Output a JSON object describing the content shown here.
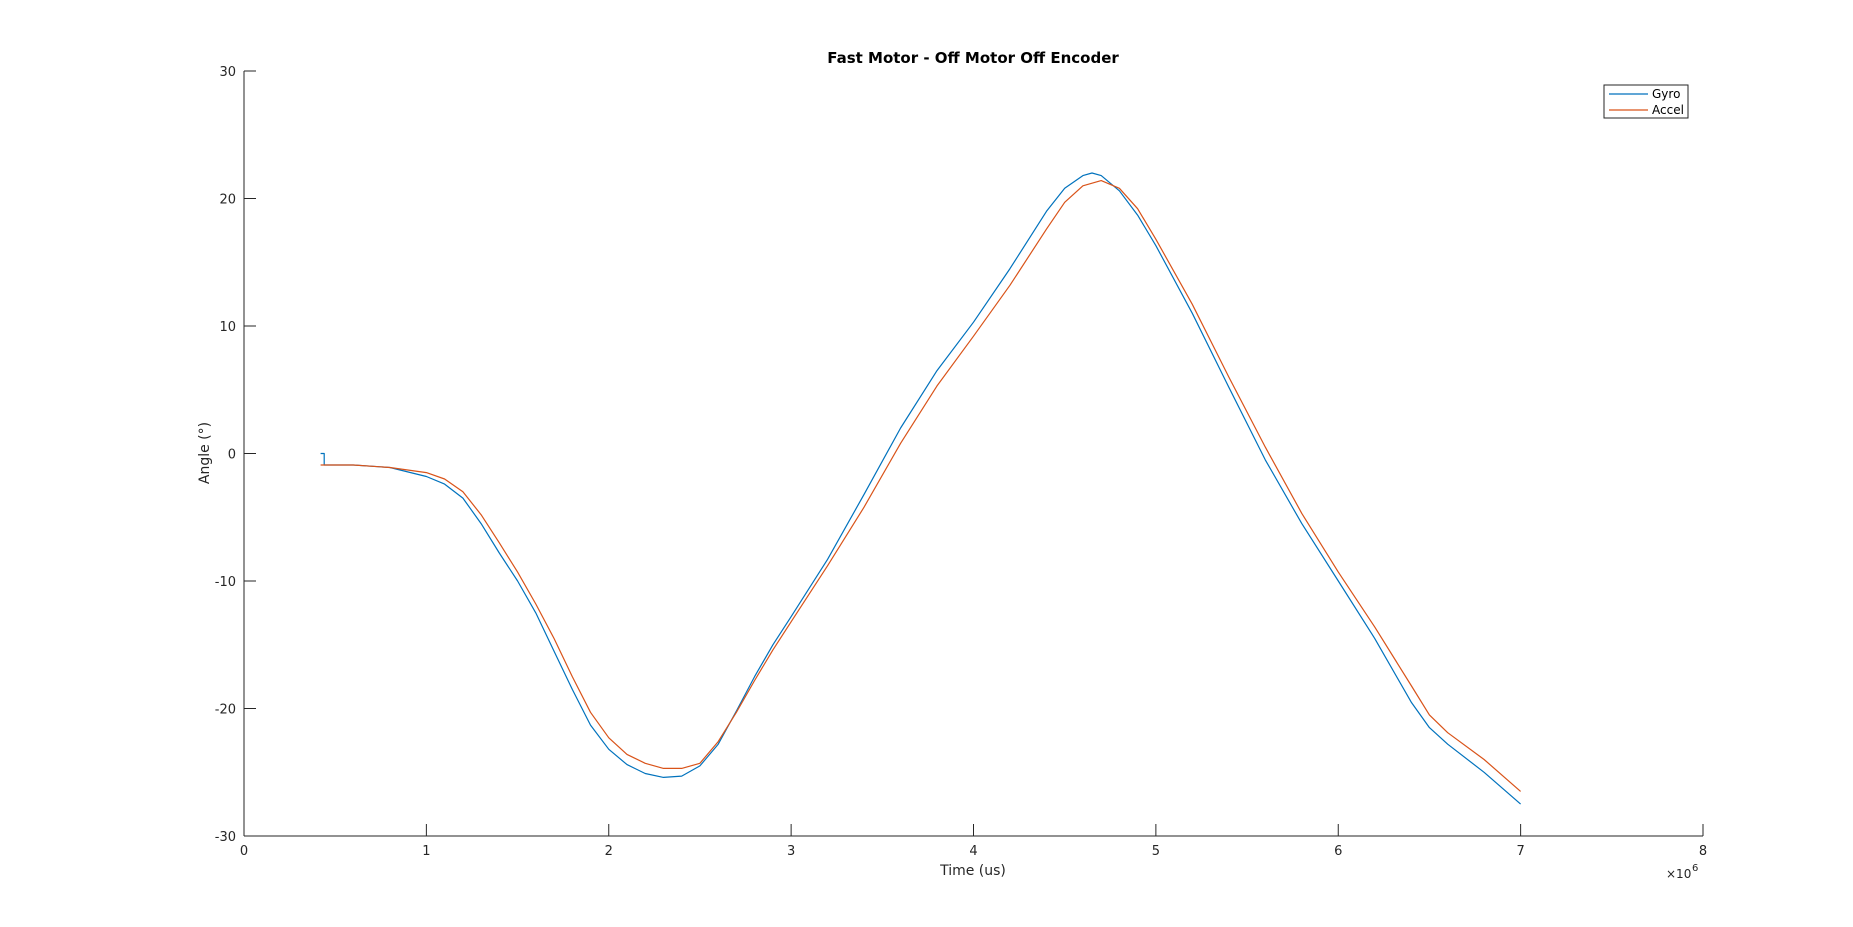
{
  "chart_data": {
    "type": "line",
    "title": "Fast Motor -  Off Motor Off Encoder",
    "xlabel": "Time (us)",
    "ylabel": "Angle (°)",
    "x_exponent_label": "×10",
    "x_exponent_power": "6",
    "xlim": [
      0,
      8000000
    ],
    "ylim": [
      -30,
      30
    ],
    "x_ticks": [
      0,
      1000000,
      2000000,
      3000000,
      4000000,
      5000000,
      6000000,
      7000000,
      8000000
    ],
    "x_tick_labels": [
      "0",
      "1",
      "2",
      "3",
      "4",
      "5",
      "6",
      "7",
      "8"
    ],
    "y_ticks": [
      -30,
      -20,
      -10,
      0,
      10,
      20,
      30
    ],
    "y_tick_labels": [
      "-30",
      "-20",
      "-10",
      "0",
      "10",
      "20",
      "30"
    ],
    "grid": false,
    "legend_position": "top-right",
    "series": [
      {
        "name": "Gyro",
        "color": "#0072BD",
        "x": [
          420000,
          440000,
          440000,
          600000,
          800000,
          1000000,
          1100000,
          1200000,
          1300000,
          1400000,
          1500000,
          1600000,
          1700000,
          1800000,
          1900000,
          2000000,
          2100000,
          2200000,
          2300000,
          2400000,
          2500000,
          2600000,
          2700000,
          2800000,
          2900000,
          3000000,
          3200000,
          3400000,
          3600000,
          3800000,
          4000000,
          4200000,
          4400000,
          4500000,
          4600000,
          4650000,
          4700000,
          4800000,
          4900000,
          5000000,
          5200000,
          5400000,
          5600000,
          5800000,
          6000000,
          6200000,
          6400000,
          6500000,
          6600000,
          6800000,
          7000000
        ],
        "y": [
          0,
          0,
          -0.9,
          -0.9,
          -1.1,
          -1.8,
          -2.4,
          -3.5,
          -5.5,
          -7.8,
          -10,
          -12.5,
          -15.5,
          -18.5,
          -21.3,
          -23.2,
          -24.4,
          -25.1,
          -25.4,
          -25.3,
          -24.5,
          -22.8,
          -20.2,
          -17.5,
          -15,
          -12.8,
          -8.3,
          -3.2,
          2,
          6.5,
          10.3,
          14.5,
          19,
          20.8,
          21.8,
          22,
          21.8,
          20.6,
          18.7,
          16.3,
          11,
          5.2,
          -0.5,
          -5.5,
          -10,
          -14.5,
          -19.5,
          -21.5,
          -22.8,
          -25,
          -27.5
        ]
      },
      {
        "name": "Accel",
        "color": "#D95319",
        "x": [
          420000,
          600000,
          800000,
          1000000,
          1100000,
          1200000,
          1300000,
          1400000,
          1500000,
          1600000,
          1700000,
          1800000,
          1900000,
          2000000,
          2100000,
          2200000,
          2300000,
          2400000,
          2500000,
          2600000,
          2700000,
          2800000,
          2900000,
          3000000,
          3200000,
          3400000,
          3600000,
          3800000,
          4000000,
          4200000,
          4400000,
          4500000,
          4600000,
          4700000,
          4800000,
          4900000,
          5000000,
          5200000,
          5400000,
          5600000,
          5800000,
          6000000,
          6200000,
          6400000,
          6500000,
          6600000,
          6800000,
          7000000
        ],
        "y": [
          -0.9,
          -0.9,
          -1.1,
          -1.5,
          -2,
          -3,
          -4.8,
          -7,
          -9.3,
          -11.8,
          -14.5,
          -17.5,
          -20.3,
          -22.3,
          -23.6,
          -24.3,
          -24.7,
          -24.7,
          -24.3,
          -22.6,
          -20.3,
          -17.8,
          -15.4,
          -13.2,
          -8.8,
          -4.2,
          0.8,
          5.3,
          9.2,
          13.2,
          17.6,
          19.7,
          21,
          21.4,
          20.8,
          19.2,
          16.8,
          11.7,
          6,
          0.5,
          -4.7,
          -9.3,
          -13.6,
          -18.2,
          -20.5,
          -21.9,
          -24,
          -26.5
        ]
      }
    ]
  }
}
